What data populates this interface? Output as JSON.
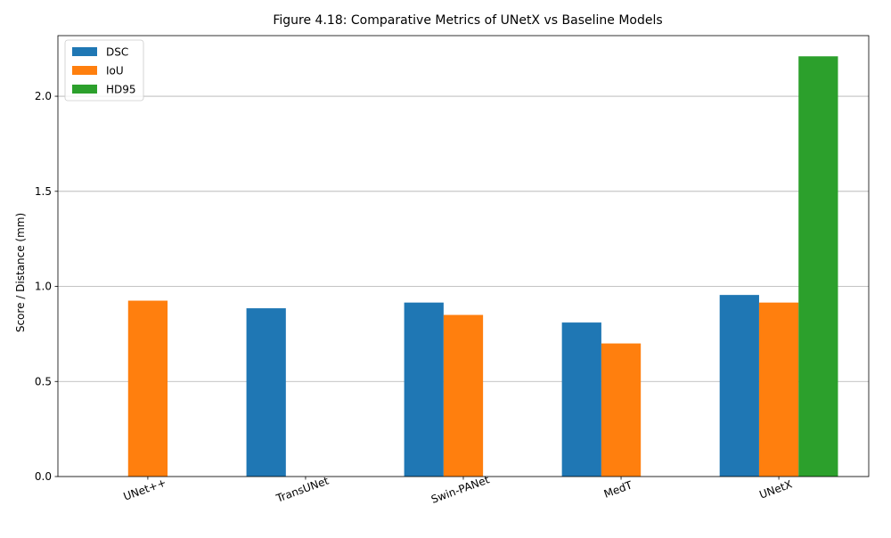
{
  "chart_data": {
    "type": "bar",
    "title": "Figure 4.18: Comparative Metrics of UNetX vs Baseline Models",
    "xlabel": "",
    "ylabel": "Score / Distance (mm)",
    "categories": [
      "UNet++",
      "TransUNet",
      "Swin-PANet",
      "MedT",
      "UNetX"
    ],
    "series": [
      {
        "name": "DSC",
        "color": "#1f77b4",
        "values": [
          null,
          0.885,
          0.915,
          0.81,
          0.955
        ]
      },
      {
        "name": "IoU",
        "color": "#ff7f0e",
        "values": [
          0.925,
          null,
          0.85,
          0.7,
          0.915
        ]
      },
      {
        "name": "HD95",
        "color": "#2ca02c",
        "values": [
          null,
          null,
          null,
          null,
          2.21
        ]
      }
    ],
    "ylim": [
      0,
      2.3188
    ],
    "yticks": [
      0.0,
      0.5,
      1.0,
      1.5,
      2.0
    ],
    "ytick_labels": [
      "0.0",
      "0.5",
      "1.0",
      "1.5",
      "2.0"
    ],
    "grid": "horizontal",
    "legend_position": "upper left",
    "xtick_rotation": 20
  }
}
